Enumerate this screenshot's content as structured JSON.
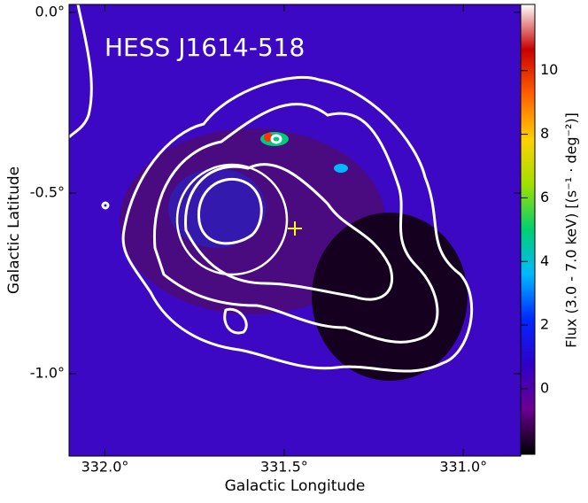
{
  "chart_data": {
    "type": "image",
    "title": "HESS J1614-518",
    "xlabel": "Galactic Longitude",
    "ylabel": "Galactic Latitude",
    "colorbar_label": "Flux (3.0 - 7.0 keV) [(s⁻¹ · deg⁻²)]",
    "xlim": [
      332.1,
      330.84
    ],
    "ylim": [
      -1.228,
      0.022
    ],
    "xticks": [
      {
        "value": 332.0,
        "label": "332.0°"
      },
      {
        "value": 331.5,
        "label": "331.5°"
      },
      {
        "value": 331.0,
        "label": "331.0°"
      }
    ],
    "yticks": [
      {
        "value": 0.0,
        "label": "0.0°"
      },
      {
        "value": -0.5,
        "label": "-0.5°"
      },
      {
        "value": -1.0,
        "label": "-1.0°"
      }
    ],
    "clim": [
      -2.06,
      12.08
    ],
    "cticks": [
      0,
      2,
      4,
      6,
      8,
      10
    ],
    "colormap": [
      "#000000",
      "#6a0090",
      "#3000c8",
      "#0028ff",
      "#00b8ff",
      "#00d070",
      "#a0e000",
      "#ffd000",
      "#ff6000",
      "#c80000",
      "#ffffff"
    ],
    "background": "#3c08c4"
  }
}
